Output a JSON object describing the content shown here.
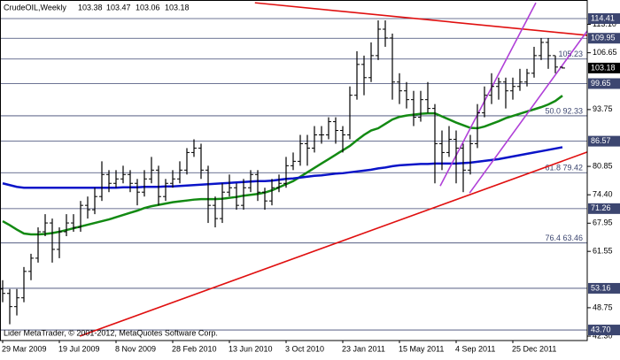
{
  "chart_data": {
    "type": "ohlc",
    "title": "CrudeOIL,Weekly",
    "footer": "Lider MetaTrader, © 2001-2012, MetaQuotes Software Corp.",
    "categories": [
      "29 Mar 2009",
      null,
      null,
      null,
      null,
      null,
      null,
      null,
      "19 Jul 2009",
      null,
      null,
      null,
      null,
      null,
      null,
      null,
      "8 Nov 2009",
      null,
      null,
      null,
      null,
      null,
      null,
      null,
      "28 Feb 2010",
      null,
      null,
      null,
      null,
      null,
      null,
      null,
      "13 Jun 2010",
      null,
      null,
      null,
      null,
      null,
      null,
      null,
      "3 Oct 2010",
      null,
      null,
      null,
      null,
      null,
      null,
      null,
      "23 Jan 2011",
      null,
      null,
      null,
      null,
      null,
      null,
      null,
      "15 May 2011",
      null,
      null,
      null,
      null,
      null,
      null,
      null,
      "4 Sep 2011",
      null,
      null,
      null,
      null,
      null,
      null,
      null,
      "25 Dec 2011",
      null,
      null,
      null,
      null,
      null,
      null,
      null
    ],
    "ohlc": [
      [
        53,
        55,
        50,
        52
      ],
      [
        52,
        53,
        45,
        49
      ],
      [
        49,
        53,
        47,
        51
      ],
      [
        51,
        58,
        50,
        57
      ],
      [
        57,
        61,
        55,
        60
      ],
      [
        60,
        67,
        59,
        66
      ],
      [
        66,
        70,
        65,
        68
      ],
      [
        68,
        69,
        59,
        62
      ],
      [
        62,
        67,
        60,
        66
      ],
      [
        66,
        70,
        65,
        68
      ],
      [
        68,
        70,
        66,
        67
      ],
      [
        67,
        73,
        66,
        72
      ],
      [
        72,
        74,
        69,
        71
      ],
      [
        71,
        76,
        70,
        74
      ],
      [
        74,
        82,
        73,
        79
      ],
      [
        79,
        80,
        75,
        77
      ],
      [
        77,
        80,
        76,
        78
      ],
      [
        78,
        81,
        77,
        79
      ],
      [
        79,
        80,
        75,
        77
      ],
      [
        77,
        78,
        72,
        75
      ],
      [
        75,
        80,
        74,
        78
      ],
      [
        78,
        83,
        77,
        80
      ],
      [
        80,
        81,
        72,
        74
      ],
      [
        74,
        78,
        73,
        77
      ],
      [
        77,
        80,
        76,
        78
      ],
      [
        78,
        82,
        77,
        80
      ],
      [
        80,
        85,
        79,
        84
      ],
      [
        84,
        87,
        83,
        85
      ],
      [
        85,
        86,
        78,
        80
      ],
      [
        80,
        81,
        68,
        72
      ],
      [
        72,
        74,
        67,
        69
      ],
      [
        69,
        77,
        68,
        75
      ],
      [
        75,
        79,
        74,
        76
      ],
      [
        76,
        77,
        71,
        72
      ],
      [
        72,
        78,
        71,
        76
      ],
      [
        76,
        80,
        75,
        79
      ],
      [
        79,
        80,
        73,
        75
      ],
      [
        75,
        76,
        71,
        73
      ],
      [
        73,
        78,
        72,
        76
      ],
      [
        76,
        79,
        75,
        77
      ],
      [
        77,
        83,
        76,
        81
      ],
      [
        81,
        84,
        80,
        82
      ],
      [
        82,
        88,
        81,
        86
      ],
      [
        86,
        88,
        81,
        85
      ],
      [
        85,
        90,
        84,
        88
      ],
      [
        88,
        90,
        86,
        88
      ],
      [
        88,
        92,
        87,
        91
      ],
      [
        91,
        92,
        86,
        89
      ],
      [
        89,
        90,
        84,
        88
      ],
      [
        88,
        99,
        87,
        97
      ],
      [
        97,
        107,
        96,
        104
      ],
      [
        104,
        106,
        97,
        101
      ],
      [
        101,
        109,
        100,
        106
      ],
      [
        106,
        114,
        105,
        112
      ],
      [
        112,
        114,
        108,
        110
      ],
      [
        110,
        111,
        96,
        100
      ],
      [
        100,
        102,
        95,
        98
      ],
      [
        98,
        100,
        94,
        96
      ],
      [
        96,
        98,
        90,
        92
      ],
      [
        92,
        98,
        91,
        96
      ],
      [
        96,
        100,
        93,
        94
      ],
      [
        94,
        95,
        77,
        86
      ],
      [
        86,
        89,
        80,
        84
      ],
      [
        84,
        90,
        83,
        87
      ],
      [
        87,
        89,
        77,
        85
      ],
      [
        85,
        86,
        75,
        80
      ],
      [
        80,
        88,
        79,
        86
      ],
      [
        86,
        95,
        85,
        93
      ],
      [
        93,
        99,
        92,
        97
      ],
      [
        97,
        102,
        95,
        99
      ],
      [
        99,
        101,
        96,
        100
      ],
      [
        100,
        101,
        94,
        98
      ],
      [
        98,
        101,
        96,
        99
      ],
      [
        99,
        103,
        98,
        100
      ],
      [
        100,
        103,
        99,
        102
      ],
      [
        102,
        108,
        101,
        106
      ],
      [
        106,
        110,
        105,
        109
      ],
      [
        109,
        110,
        103,
        106
      ],
      [
        106,
        106,
        102,
        103.4
      ],
      [
        103.38,
        103.47,
        103.06,
        103.18
      ]
    ],
    "bar_color": "#000000",
    "series": [
      {
        "color": "#138a13",
        "values": [
          68.4,
          67.5,
          66.5,
          65.6,
          65.4,
          65.4,
          65.5,
          65.7,
          66.0,
          66.4,
          66.8,
          67.2,
          67.6,
          68.0,
          68.4,
          68.8,
          69.3,
          69.8,
          70.3,
          70.8,
          71.4,
          71.8,
          72.1,
          72.4,
          72.7,
          72.9,
          73.1,
          73.3,
          73.4,
          73.4,
          73.4,
          73.5,
          73.7,
          73.9,
          74.2,
          74.4,
          74.6,
          74.9,
          75.4,
          76.1,
          76.8,
          77.5,
          78.5,
          79.5,
          80.5,
          81.5,
          82.5,
          83.5,
          84.5,
          85.5,
          86.8,
          88.0,
          89.0,
          89.5,
          90.5,
          91.5,
          92.1,
          92.4,
          92.6,
          92.8,
          92.9,
          92.9,
          92.2,
          91.5,
          90.8,
          90.2,
          89.6,
          89.5,
          89.9,
          90.5,
          91.1,
          91.8,
          92.3,
          92.8,
          93.3,
          93.8,
          94.3,
          94.9,
          95.7,
          96.9
        ]
      },
      {
        "color": "#0a14c8",
        "values": [
          77.0,
          76.6,
          76.2,
          76.0,
          76.0,
          76.0,
          76.0,
          76.0,
          76.0,
          76.0,
          76.0,
          76.0,
          76.0,
          76.0,
          76.0,
          76.0,
          76.0,
          76.1,
          76.1,
          76.1,
          76.2,
          76.2,
          76.2,
          76.3,
          76.3,
          76.4,
          76.5,
          76.6,
          76.7,
          76.8,
          76.9,
          77.0,
          77.1,
          77.2,
          77.3,
          77.4,
          77.5,
          77.5,
          77.6,
          77.8,
          78.0,
          78.1,
          78.3,
          78.5,
          78.7,
          78.8,
          79.0,
          79.2,
          79.3,
          79.5,
          79.7,
          79.9,
          80.1,
          80.4,
          80.6,
          80.9,
          81.1,
          81.2,
          81.3,
          81.4,
          81.4,
          81.5,
          81.5,
          81.5,
          81.5,
          81.6,
          81.7,
          81.9,
          82.1,
          82.3,
          82.5,
          82.8,
          83.1,
          83.4,
          83.7,
          84.0,
          84.3,
          84.6,
          84.9,
          85.2
        ]
      }
    ],
    "trendlines": [
      {
        "color": "#e01010",
        "x": [
          35.6,
          82.5
        ],
        "y": [
          118.0,
          110.6
        ]
      },
      {
        "color": "#e01010",
        "x": [
          10.9,
          82.5
        ],
        "y": [
          42.3,
          84.1
        ]
      },
      {
        "color": "#b040d8",
        "x": [
          61.75,
          75.25
        ],
        "y": [
          76.4,
          118.0
        ]
      },
      {
        "color": "#b040d8",
        "x": [
          65.9,
          82.5
        ],
        "y": [
          74.8,
          111.6
        ]
      }
    ],
    "levels": [
      114.41,
      109.95,
      99.65,
      86.57,
      71.26,
      53.16,
      {
        "value": 43.7,
        "label": "43.70"
      }
    ],
    "level_color": "#3c4670",
    "fib_levels": [
      {
        "value": 105.23,
        "label": "105.23"
      },
      {
        "value": 92.33,
        "label": "50.0 92.33"
      },
      {
        "value": 79.42,
        "label": "61.8 79.42"
      },
      {
        "value": 63.46,
        "label": "76.4 63.46"
      }
    ],
    "ylim": [
      41.3,
      118.63
    ],
    "yticks": [
      {
        "value": 42.3,
        "label": "42.30"
      },
      48.75,
      61.55,
      67.95,
      {
        "value": 74.4,
        "label": "74.40"
      },
      80.85,
      93.75,
      106.65,
      {
        "value": 113.1,
        "label": "113.10"
      }
    ]
  }
}
